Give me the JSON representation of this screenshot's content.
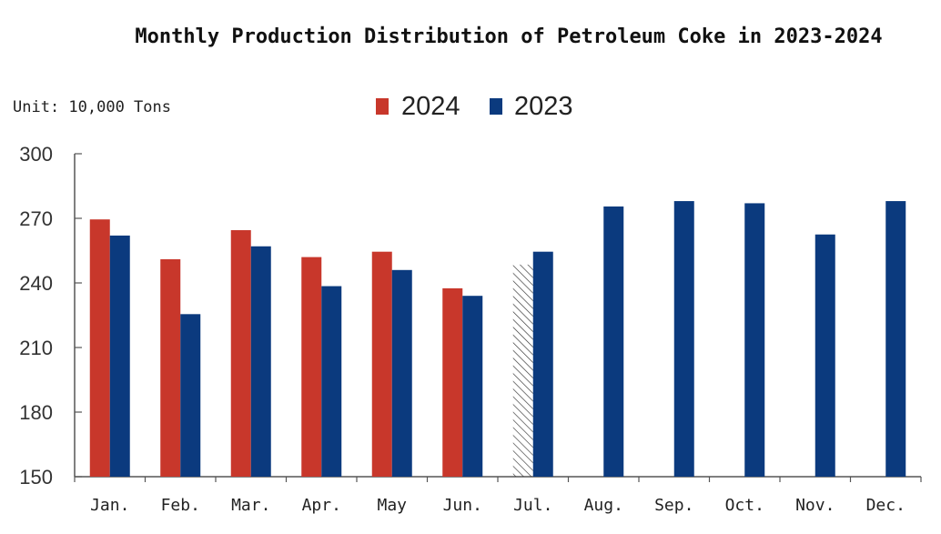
{
  "chart_data": {
    "type": "bar",
    "title": "Monthly Production Distribution of Petroleum Coke in 2023-2024",
    "unit_label": "Unit: 10,000 Tons",
    "categories": [
      "Jan.",
      "Feb.",
      "Mar.",
      "Apr.",
      "May",
      "Jun.",
      "Jul.",
      "Aug.",
      "Sep.",
      "Oct.",
      "Nov.",
      "Dec."
    ],
    "series": [
      {
        "name": "2024",
        "color": "#c8372b",
        "values": [
          269.5,
          251,
          264.5,
          252,
          254.5,
          237.5,
          null,
          null,
          null,
          null,
          null,
          null
        ]
      },
      {
        "name": "2023",
        "color": "#0b3a7e",
        "values": [
          262,
          225.5,
          257,
          238.5,
          246,
          234,
          254.5,
          275.5,
          278,
          277,
          262.5,
          278
        ]
      }
    ],
    "estimate": {
      "category": "Jul.",
      "series": "2024",
      "value": 248.5,
      "pattern": "hatched"
    },
    "ylim": [
      150,
      300
    ],
    "yticks": [
      150,
      180,
      210,
      240,
      270,
      300
    ],
    "legend_position": "top-center",
    "grid": false
  }
}
